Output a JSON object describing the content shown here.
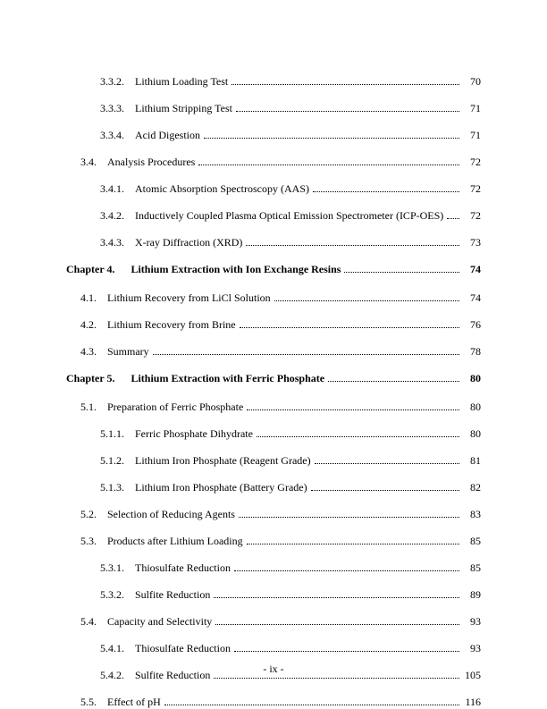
{
  "toc": [
    {
      "level": 3,
      "num": "3.3.2.",
      "title": "Lithium Loading Test",
      "page": "70",
      "chapter": false
    },
    {
      "level": 3,
      "num": "3.3.3.",
      "title": "Lithium Stripping Test",
      "page": "71",
      "chapter": false
    },
    {
      "level": 3,
      "num": "3.3.4.",
      "title": "Acid Digestion",
      "page": "71",
      "chapter": false
    },
    {
      "level": 2,
      "num": "3.4.",
      "title": "Analysis Procedures",
      "page": "72",
      "chapter": false
    },
    {
      "level": 3,
      "num": "3.4.1.",
      "title": "Atomic Absorption Spectroscopy (AAS)",
      "page": "72",
      "chapter": false
    },
    {
      "level": 3,
      "num": "3.4.2.",
      "title": "Inductively Coupled Plasma Optical Emission Spectrometer (ICP-OES)",
      "page": "72",
      "chapter": false
    },
    {
      "level": 3,
      "num": "3.4.3.",
      "title": "X-ray Diffraction (XRD)",
      "page": "73",
      "chapter": false
    },
    {
      "level": 1,
      "num": "Chapter 4.",
      "title": "Lithium Extraction with Ion Exchange Resins",
      "page": "74",
      "chapter": true
    },
    {
      "level": 2,
      "num": "4.1.",
      "title": "Lithium Recovery from LiCl Solution",
      "page": "74",
      "chapter": false
    },
    {
      "level": 2,
      "num": "4.2.",
      "title": "Lithium Recovery from Brine",
      "page": "76",
      "chapter": false
    },
    {
      "level": 2,
      "num": "4.3.",
      "title": "Summary",
      "page": "78",
      "chapter": false
    },
    {
      "level": 1,
      "num": "Chapter 5.",
      "title": "Lithium Extraction with Ferric Phosphate",
      "page": "80",
      "chapter": true
    },
    {
      "level": 2,
      "num": "5.1.",
      "title": "Preparation of Ferric Phosphate",
      "page": "80",
      "chapter": false
    },
    {
      "level": 3,
      "num": "5.1.1.",
      "title": "Ferric Phosphate Dihydrate",
      "page": "80",
      "chapter": false
    },
    {
      "level": 3,
      "num": "5.1.2.",
      "title": "Lithium Iron Phosphate (Reagent Grade)",
      "page": "81",
      "chapter": false
    },
    {
      "level": 3,
      "num": "5.1.3.",
      "title": "Lithium Iron Phosphate (Battery Grade)",
      "page": "82",
      "chapter": false
    },
    {
      "level": 2,
      "num": "5.2.",
      "title": "Selection of Reducing Agents",
      "page": "83",
      "chapter": false
    },
    {
      "level": 2,
      "num": "5.3.",
      "title": "Products after Lithium Loading",
      "page": "85",
      "chapter": false
    },
    {
      "level": 3,
      "num": "5.3.1.",
      "title": "Thiosulfate Reduction",
      "page": "85",
      "chapter": false
    },
    {
      "level": 3,
      "num": "5.3.2.",
      "title": "Sulfite Reduction",
      "page": "89",
      "chapter": false
    },
    {
      "level": 2,
      "num": "5.4.",
      "title": "Capacity and Selectivity",
      "page": "93",
      "chapter": false
    },
    {
      "level": 3,
      "num": "5.4.1.",
      "title": "Thiosulfate Reduction",
      "page": "93",
      "chapter": false
    },
    {
      "level": 3,
      "num": "5.4.2.",
      "title": "Sulfite Reduction",
      "page": "105",
      "chapter": false
    },
    {
      "level": 2,
      "num": "5.5.",
      "title": "Effect of pH",
      "page": "116",
      "chapter": false
    }
  ],
  "footer": "-   ix   -"
}
